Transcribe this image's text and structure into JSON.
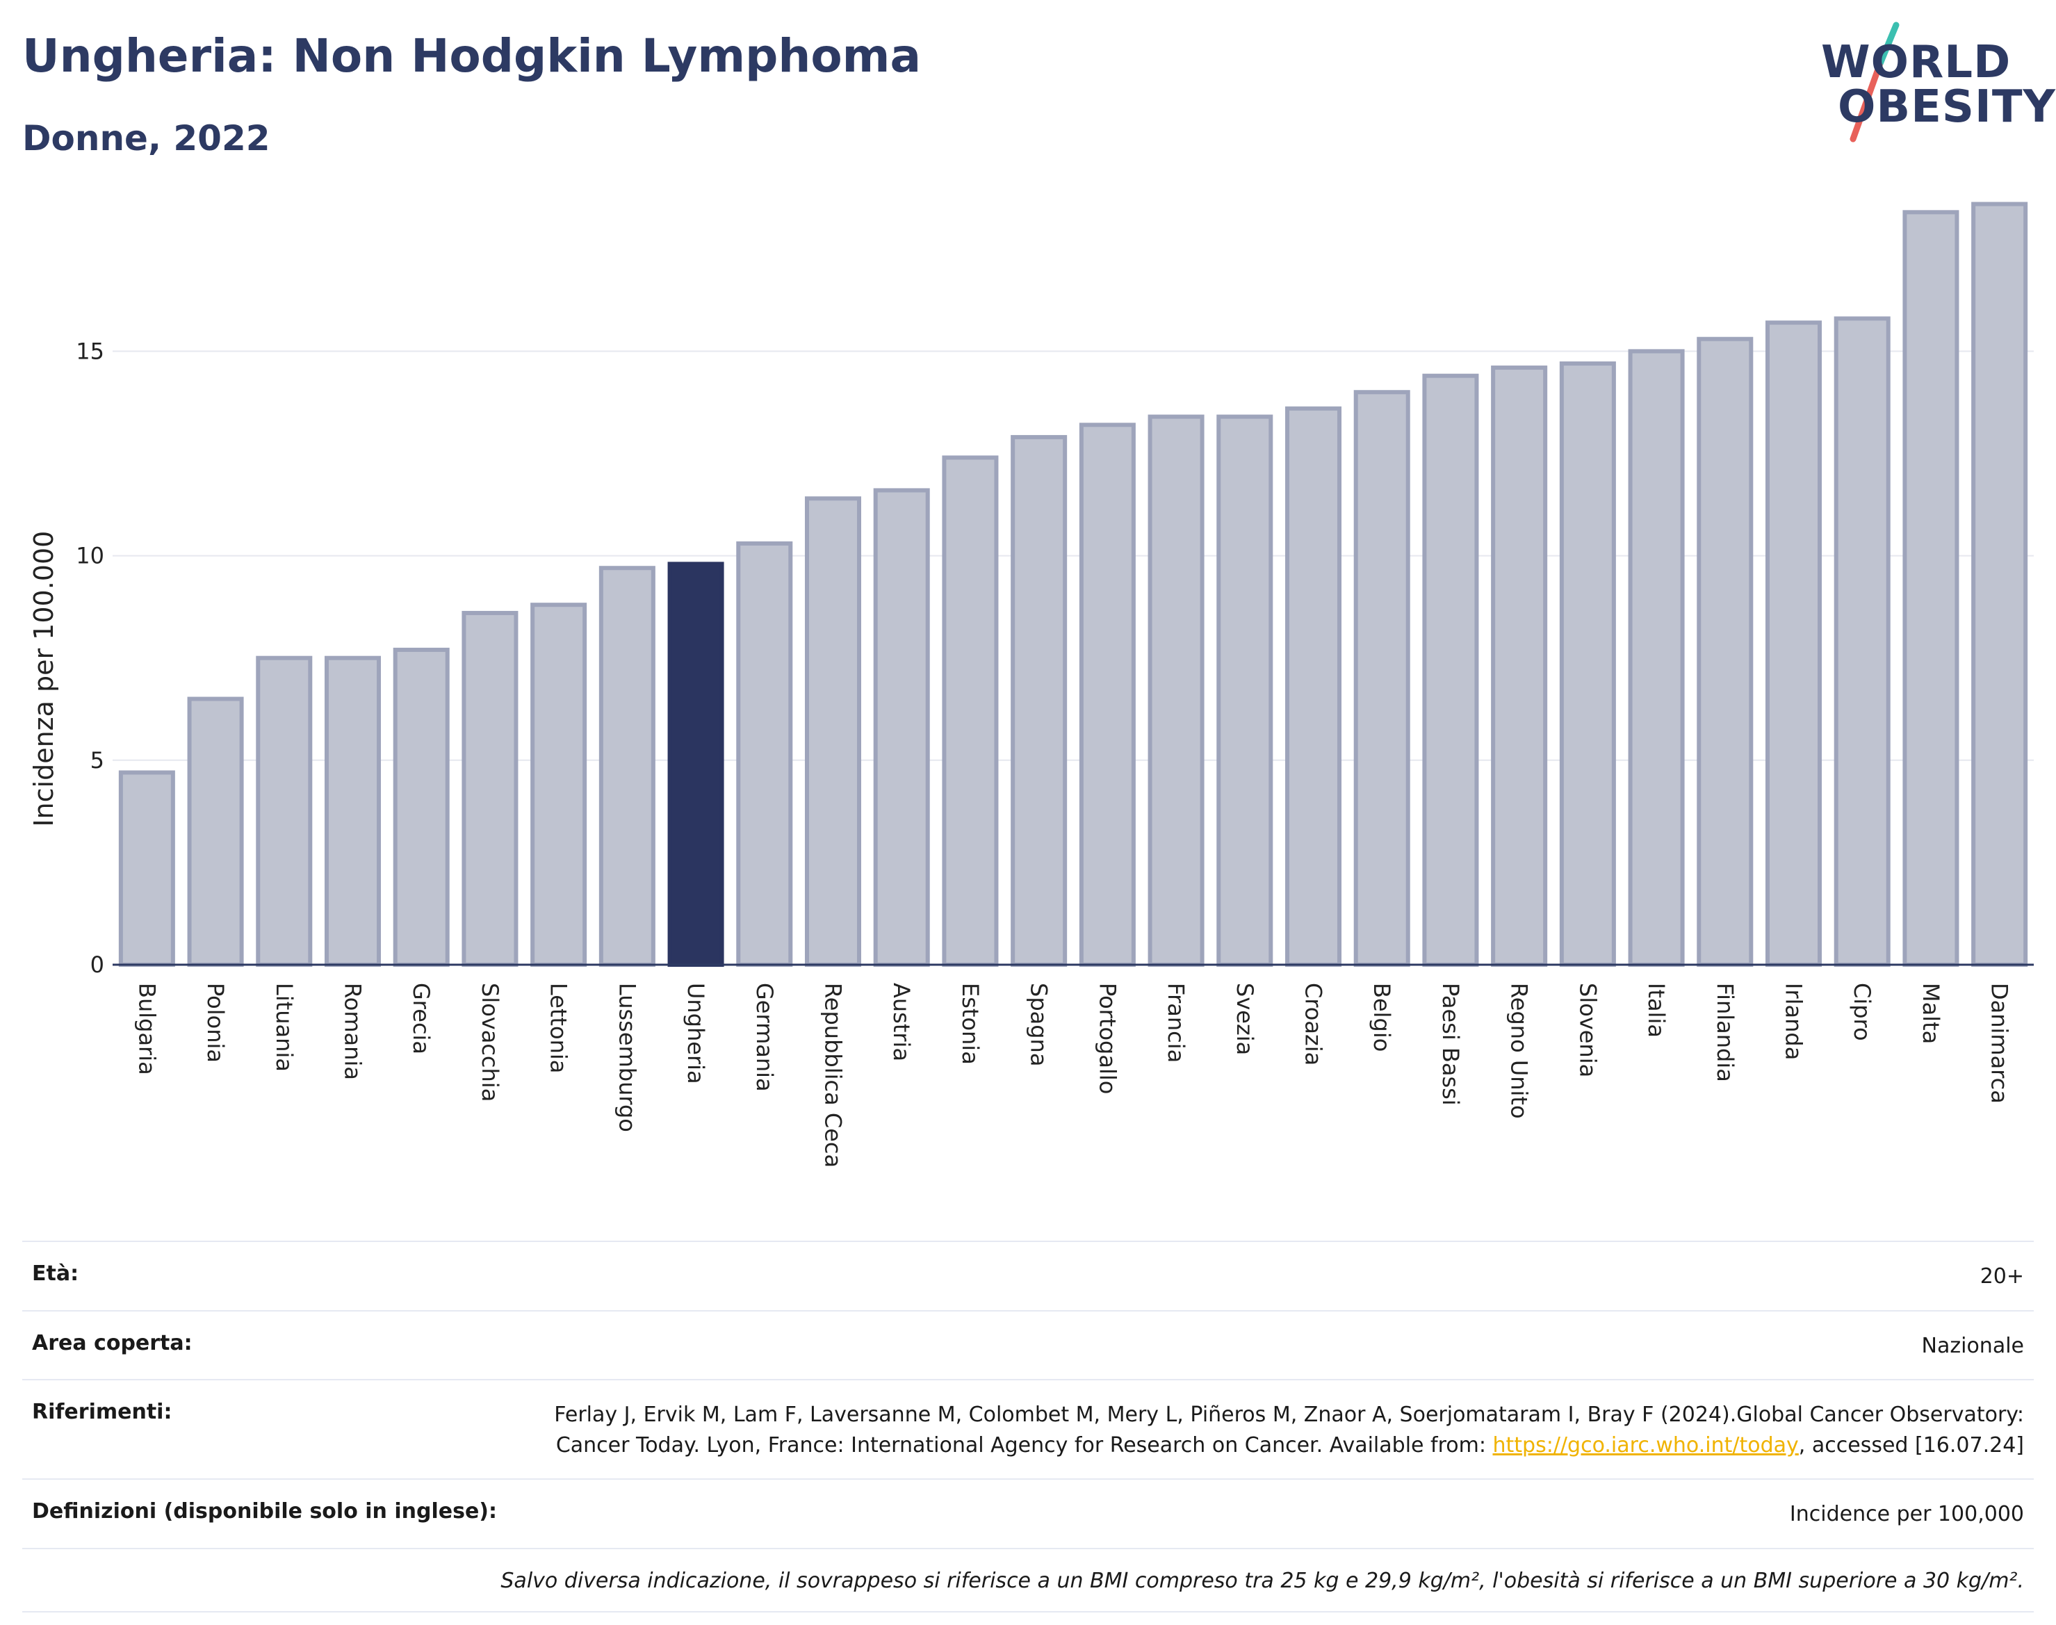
{
  "header": {
    "title": "Ungheria: Non Hodgkin Lymphoma",
    "subtitle": "Donne, 2022"
  },
  "logo": {
    "line1": "WORLD",
    "line2": "OBESITY",
    "colors": {
      "text": "#2d3a63",
      "slash_top": "#3bbfb0",
      "slash_bottom": "#e8615a"
    }
  },
  "colors": {
    "bar_fill": "#bfc3d0",
    "bar_stroke": "#9ea4bb",
    "highlight_fill": "#2b3560",
    "grid": "#e6e8ef",
    "axis": "#2d3a63"
  },
  "chart_data": {
    "type": "bar",
    "ylabel": "Incidenza per 100.000",
    "ylim": [
      0,
      19
    ],
    "yticks": [
      0,
      5,
      10,
      15
    ],
    "grid": true,
    "highlight": "Ungheria",
    "categories": [
      "Bulgaria",
      "Polonia",
      "Lituania",
      "Romania",
      "Grecia",
      "Slovacchia",
      "Lettonia",
      "Lussemburgo",
      "Ungheria",
      "Germania",
      "Repubblica Ceca",
      "Austria",
      "Estonia",
      "Spagna",
      "Portogallo",
      "Francia",
      "Svezia",
      "Croazia",
      "Belgio",
      "Paesi Bassi",
      "Regno Unito",
      "Slovenia",
      "Italia",
      "Finlandia",
      "Irlanda",
      "Cipro",
      "Malta",
      "Danimarca"
    ],
    "values": [
      4.7,
      6.5,
      7.5,
      7.5,
      7.7,
      8.6,
      8.8,
      9.7,
      9.8,
      10.3,
      11.4,
      11.6,
      12.4,
      12.9,
      13.2,
      13.4,
      13.4,
      13.6,
      14.0,
      14.4,
      14.6,
      14.7,
      15.0,
      15.3,
      15.7,
      15.8,
      18.4,
      18.6
    ]
  },
  "info": {
    "age_label": "Età:",
    "age_value": "20+",
    "area_label": "Area coperta:",
    "area_value": "Nazionale",
    "refs_label": "Riferimenti:",
    "refs_text_before": "Ferlay J, Ervik M, Lam F, Laversanne M, Colombet M, Mery L, Piñeros M, Znaor A, Soerjomataram I, Bray F (2024).Global Cancer Observatory: Cancer Today. Lyon, France: International Agency for Research on Cancer. Available from:",
    "refs_link": "https://gco.iarc.who.int/today",
    "refs_text_after": ", accessed [16.07.24]",
    "defs_label": "Definizioni (disponibile solo in inglese):",
    "defs_value": "Incidence per 100,000",
    "note": "Salvo diversa indicazione, il sovrappeso si riferisce a un BMI compreso tra 25 kg e 29,9 kg/m², l'obesità si riferisce a un BMI superiore a 30 kg/m²."
  }
}
